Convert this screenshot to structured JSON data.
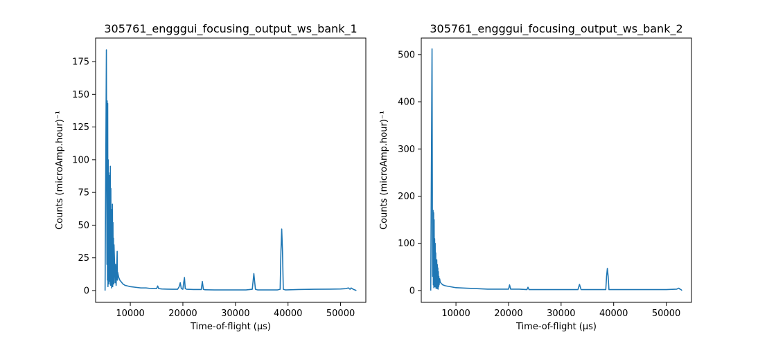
{
  "chart_data": [
    {
      "type": "line",
      "title": "305761_engggui_focusing_output_ws_bank_1",
      "xlabel": "Time-of-flight (μs)",
      "ylabel": "Counts (microAmp.hour)⁻¹",
      "xlim": [
        3400,
        54800
      ],
      "ylim": [
        -9,
        193
      ],
      "xticks": [
        10000,
        20000,
        30000,
        40000,
        50000
      ],
      "xtick_labels": [
        "10000",
        "20000",
        "30000",
        "40000",
        "50000"
      ],
      "yticks": [
        0,
        25,
        50,
        75,
        100,
        125,
        150,
        175
      ],
      "ytick_labels": [
        "0",
        "25",
        "50",
        "75",
        "100",
        "125",
        "150",
        "175"
      ],
      "grid": false,
      "color": "#1f77b4",
      "series": [
        {
          "x": [
            5200,
            5450,
            5550,
            5600,
            5650,
            5700,
            5750,
            5800,
            5850,
            5900,
            5950,
            6000,
            6050,
            6100,
            6150,
            6200,
            6250,
            6300,
            6350,
            6400,
            6450,
            6500,
            6550,
            6600,
            6650,
            6700,
            6750,
            6800,
            6850,
            6900,
            7000,
            7100,
            7200,
            7300,
            7400,
            7500,
            7550,
            7600,
            7700,
            7800,
            7900,
            8000,
            8200,
            8400,
            8600,
            8800,
            9000,
            9500,
            10000,
            11000,
            12000,
            13000,
            14000,
            15000,
            15200,
            15400,
            16000,
            17000,
            18000,
            19000,
            19300,
            19500,
            19700,
            20000,
            20150,
            20300,
            20450,
            20700,
            22000,
            23500,
            23700,
            23900,
            24200,
            26000,
            28000,
            30000,
            32000,
            33200,
            33500,
            33800,
            34200,
            36000,
            38000,
            38500,
            38650,
            38800,
            38950,
            39100,
            39500,
            42000,
            45000,
            48000,
            50000,
            51000,
            51500,
            51800,
            52000,
            52200,
            52400,
            52700,
            53000
          ],
          "y": [
            0,
            184,
            20,
            145,
            8,
            143,
            3,
            100,
            12,
            90,
            5,
            88,
            7,
            75,
            10,
            95,
            4,
            78,
            15,
            62,
            2,
            56,
            8,
            66,
            3,
            52,
            10,
            40,
            5,
            35,
            22,
            6,
            20,
            4,
            15,
            30,
            8,
            14,
            12,
            10,
            9,
            8,
            7,
            6,
            5,
            4.5,
            4,
            3.5,
            3,
            2.5,
            2,
            2,
            1.5,
            1.5,
            3.5,
            1.5,
            1.2,
            1.1,
            1,
            1,
            3,
            6,
            1.5,
            1,
            6,
            10,
            1.5,
            1,
            0.8,
            0.8,
            7,
            1,
            0.6,
            0.5,
            0.5,
            0.5,
            0.5,
            1,
            13,
            1,
            0.5,
            0.5,
            0.5,
            1,
            30,
            47,
            30,
            1,
            0.5,
            0.8,
            1,
            1.1,
            1.2,
            1.5,
            2,
            1,
            2,
            1.5,
            1,
            0.5,
            0
          ]
        }
      ]
    },
    {
      "type": "line",
      "title": "305761_engggui_focusing_output_ws_bank_2",
      "xlabel": "Time-of-flight (μs)",
      "ylabel": "Counts (microAmp.hour)⁻¹",
      "xlim": [
        3400,
        54800
      ],
      "ylim": [
        -25,
        535
      ],
      "xticks": [
        10000,
        20000,
        30000,
        40000,
        50000
      ],
      "xtick_labels": [
        "10000",
        "20000",
        "30000",
        "40000",
        "50000"
      ],
      "yticks": [
        0,
        100,
        200,
        300,
        400,
        500
      ],
      "ytick_labels": [
        "0",
        "100",
        "200",
        "300",
        "400",
        "500"
      ],
      "grid": false,
      "color": "#1f77b4",
      "series": [
        {
          "x": [
            5200,
            5450,
            5550,
            5650,
            5700,
            5750,
            5800,
            5850,
            5900,
            5950,
            6000,
            6050,
            6100,
            6150,
            6200,
            6250,
            6300,
            6350,
            6400,
            6450,
            6500,
            6550,
            6600,
            6650,
            6700,
            6750,
            6800,
            6900,
            7000,
            7200,
            7500,
            8000,
            9000,
            10000,
            12000,
            14000,
            16000,
            18000,
            20000,
            20200,
            20400,
            20600,
            22000,
            23500,
            23700,
            23900,
            26000,
            30000,
            33200,
            33500,
            33800,
            36000,
            38500,
            38650,
            38800,
            38950,
            39100,
            42000,
            46000,
            50000,
            52000,
            52400,
            52600,
            52800,
            53000
          ],
          "y": [
            0,
            512,
            30,
            170,
            12,
            165,
            6,
            150,
            20,
            110,
            8,
            100,
            12,
            80,
            5,
            65,
            15,
            65,
            4,
            55,
            10,
            48,
            3,
            40,
            8,
            30,
            12,
            25,
            18,
            15,
            12,
            10,
            8,
            6,
            5,
            4,
            3,
            3,
            3,
            12,
            3,
            3,
            3,
            2,
            7,
            2,
            2,
            2,
            2,
            13,
            2,
            2,
            2,
            30,
            47,
            30,
            2,
            2,
            2,
            2,
            3,
            5,
            3,
            2,
            0
          ]
        }
      ]
    }
  ]
}
